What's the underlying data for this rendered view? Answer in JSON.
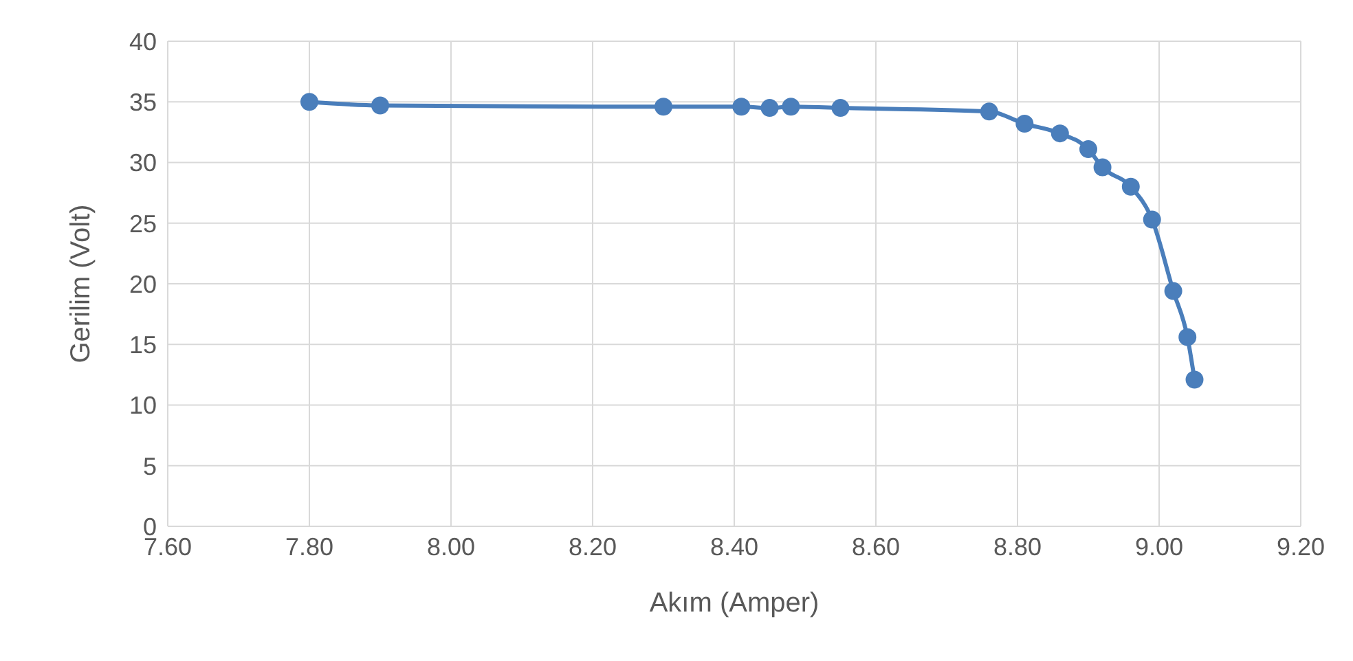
{
  "chart_data": {
    "type": "line",
    "xlabel": "Akım (Amper)",
    "ylabel": "Gerilim (Volt)",
    "x": [
      7.8,
      7.9,
      8.3,
      8.41,
      8.45,
      8.48,
      8.55,
      8.76,
      8.81,
      8.86,
      8.9,
      8.92,
      8.96,
      8.99,
      9.02,
      9.04,
      9.05
    ],
    "series": [
      {
        "color": "#4a7ebb",
        "values": [
          35.0,
          34.7,
          34.6,
          34.6,
          34.5,
          34.6,
          34.5,
          34.2,
          33.2,
          32.4,
          31.1,
          29.6,
          28.0,
          25.3,
          19.4,
          15.6,
          12.1
        ]
      }
    ],
    "xlim": [
      7.6,
      9.2
    ],
    "xticks": [
      {
        "value": 7.6,
        "label": "7.60"
      },
      {
        "value": 7.8,
        "label": "7.80"
      },
      {
        "value": 8.0,
        "label": "8.00"
      },
      {
        "value": 8.2,
        "label": "8.20"
      },
      {
        "value": 8.4,
        "label": "8.40"
      },
      {
        "value": 8.6,
        "label": "8.60"
      },
      {
        "value": 8.8,
        "label": "8.80"
      },
      {
        "value": 9.0,
        "label": "9.00"
      },
      {
        "value": 9.2,
        "label": "9.20"
      }
    ],
    "ylim": [
      0,
      40
    ],
    "yticks": [
      0,
      5,
      10,
      15,
      20,
      25,
      30,
      35,
      40
    ],
    "grid": true,
    "marker": "circle",
    "line_style": "solid"
  }
}
